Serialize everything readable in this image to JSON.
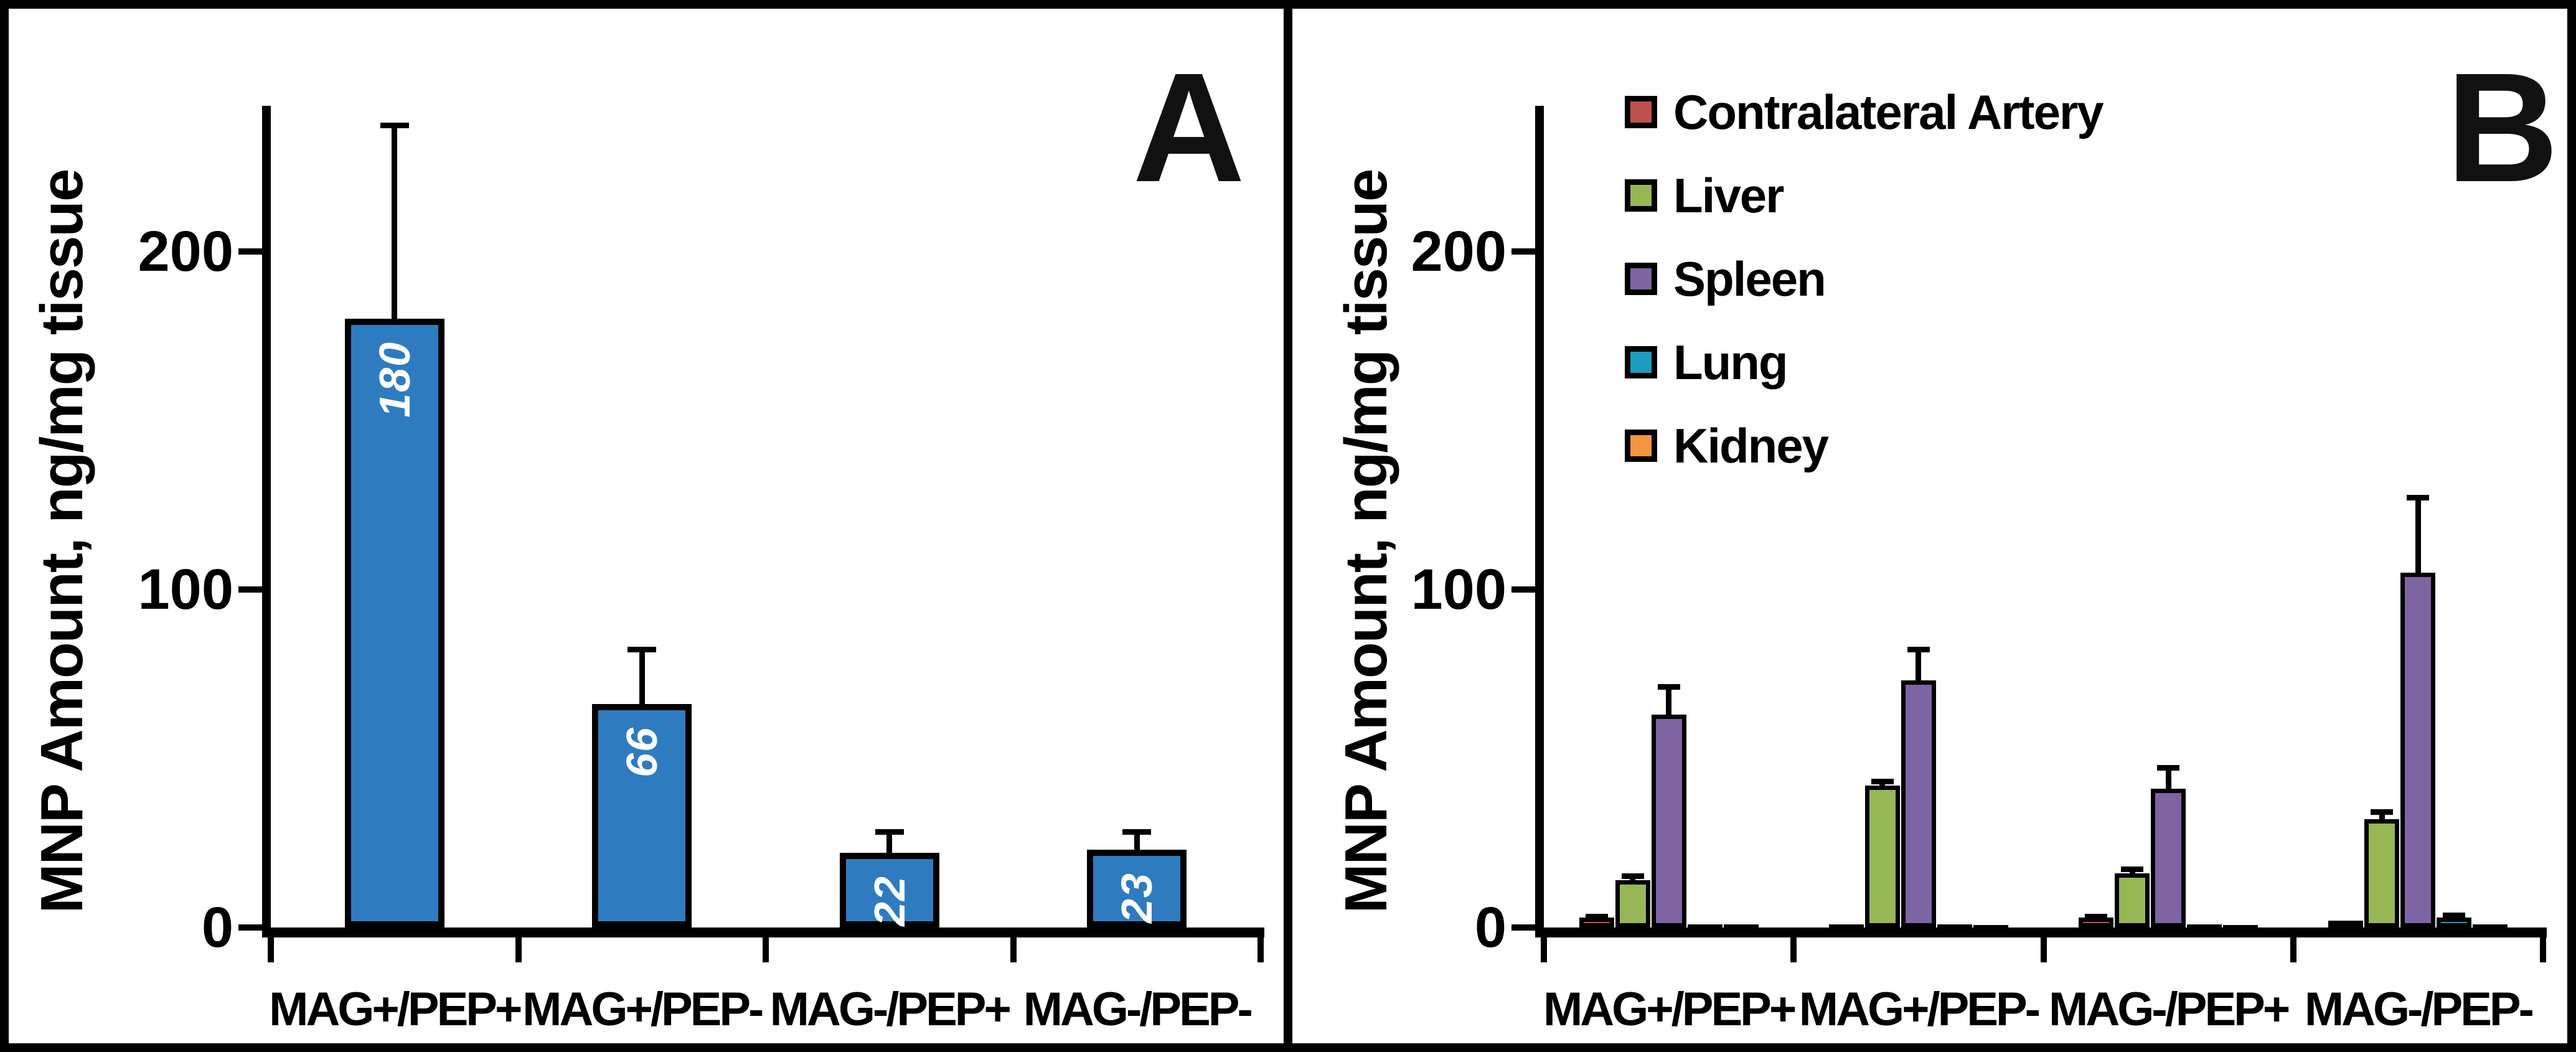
{
  "figure": {
    "panel_a_letter": "A",
    "panel_b_letter": "B",
    "y_axis_title": "MNP Amount, ng/mg tissue"
  },
  "colors": {
    "axis": "#000000",
    "bar_border": "#000000",
    "panel_a_bar": "#2E7CBF",
    "data_label_text": "#FFFFFF"
  },
  "chart_data": [
    {
      "type": "bar",
      "panel": "A",
      "ylabel": "MNP Amount, ng/mg tissue",
      "categories": [
        "MAG+/PEP+",
        "MAG+/PEP-",
        "MAG-/PEP+",
        "MAG-/PEP-"
      ],
      "values": [
        180,
        66,
        22,
        23
      ],
      "errors_plus": [
        58,
        17,
        7,
        6
      ],
      "data_labels": [
        "180",
        "66",
        "22",
        "23"
      ],
      "bar_color": "#2E7CBF",
      "yticks": [
        0,
        100,
        200
      ],
      "ylim": [
        0,
        243
      ],
      "grid": false,
      "legend_position": "none"
    },
    {
      "type": "bar",
      "panel": "B",
      "ylabel": "MNP Amount, ng/mg tissue",
      "categories": [
        "MAG+/PEP+",
        "MAG+/PEP-",
        "MAG-/PEP+",
        "MAG-/PEP-"
      ],
      "series": [
        {
          "name": "Contralateral Artery",
          "color": "#C0504D",
          "values": [
            3,
            1,
            3,
            2
          ],
          "errors_plus": [
            1,
            0,
            1,
            0
          ]
        },
        {
          "name": "Liver",
          "color": "#97B656",
          "values": [
            14,
            42,
            16,
            32
          ],
          "errors_plus": [
            2,
            2,
            2,
            3
          ]
        },
        {
          "name": "Spleen",
          "color": "#7E64A3",
          "values": [
            63,
            73,
            41,
            105
          ],
          "errors_plus": [
            9,
            10,
            7,
            23
          ]
        },
        {
          "name": "Lung",
          "color": "#1D9DBE",
          "values": [
            1,
            1,
            1,
            3
          ],
          "errors_plus": [
            0,
            0,
            0,
            1.5
          ]
        },
        {
          "name": "Kidney",
          "color": "#F4953F",
          "values": [
            1,
            0.5,
            0.5,
            1
          ],
          "errors_plus": [
            0,
            0,
            0,
            0
          ]
        }
      ],
      "yticks": [
        0,
        100,
        200
      ],
      "ylim": [
        0,
        243
      ],
      "grid": false,
      "legend_position": "top-left"
    }
  ]
}
